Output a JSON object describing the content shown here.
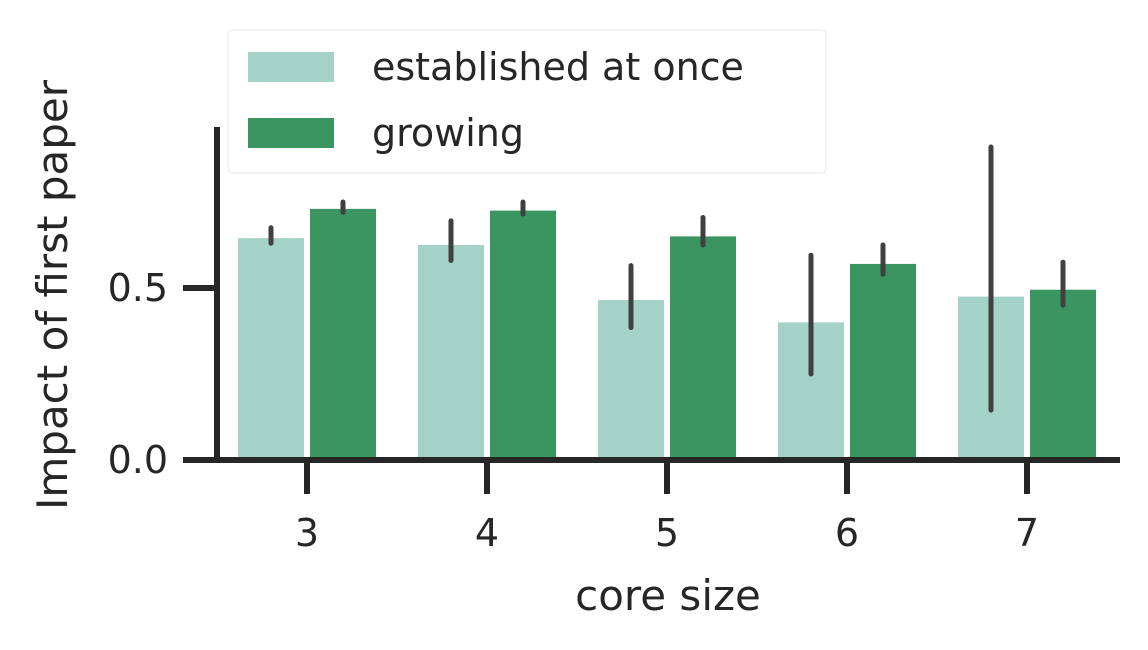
{
  "chart_data": {
    "type": "bar",
    "xlabel": "core size",
    "ylabel": "Impact of first paper",
    "categories": [
      "3",
      "4",
      "5",
      "6",
      "7"
    ],
    "ylim": [
      0,
      0.97
    ],
    "yticks": [
      0.0,
      0.5
    ],
    "ytick_labels": [
      "0.0",
      "0.5"
    ],
    "legend_position": "top-left",
    "grid": false,
    "series": [
      {
        "name": "established at once",
        "color": "#a5d2c6",
        "values": [
          0.645,
          0.625,
          0.465,
          0.4,
          0.475
        ],
        "error_low": [
          0.63,
          0.58,
          0.385,
          0.25,
          0.145
        ],
        "error_high": [
          0.675,
          0.695,
          0.565,
          0.595,
          0.91
        ]
      },
      {
        "name": "growing",
        "color": "#3b9560",
        "values": [
          0.73,
          0.725,
          0.65,
          0.57,
          0.495
        ],
        "error_low": [
          0.72,
          0.715,
          0.625,
          0.54,
          0.45
        ],
        "error_high": [
          0.75,
          0.75,
          0.705,
          0.625,
          0.575
        ]
      }
    ],
    "error_bar_color": "#404040"
  }
}
